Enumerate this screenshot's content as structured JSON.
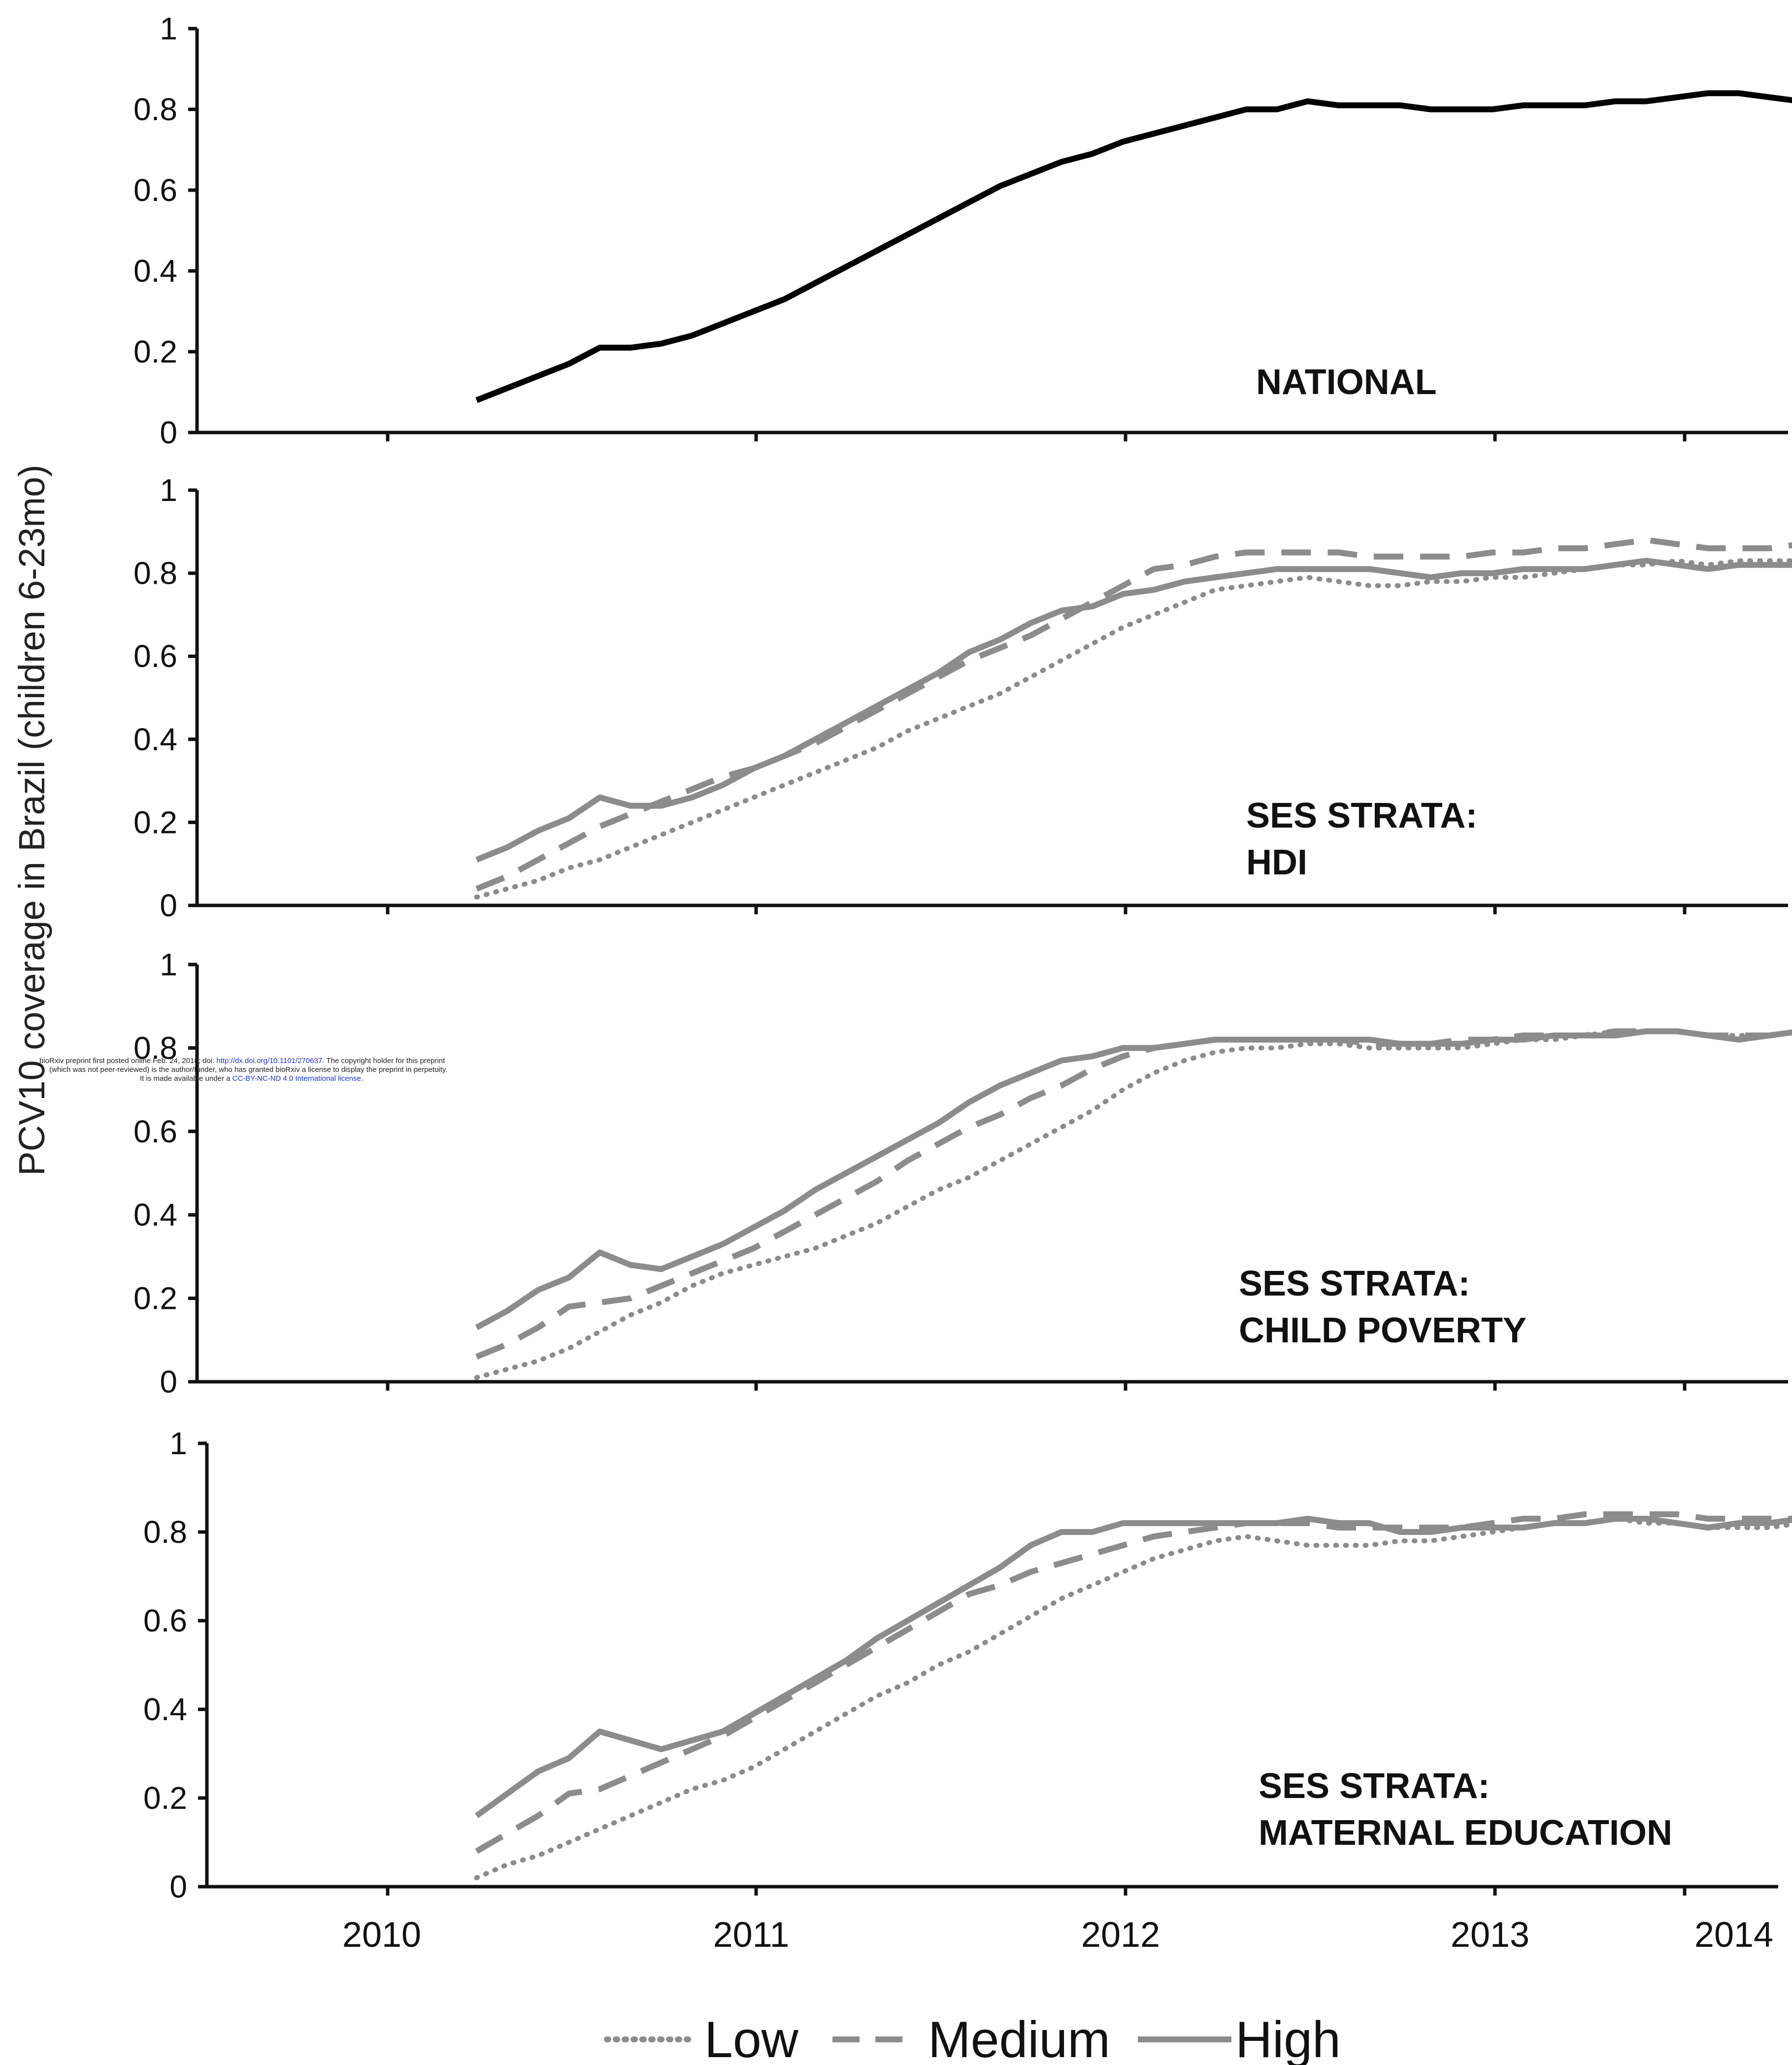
{
  "figure": {
    "y_axis_label": "PCV10 coverage  in Brazil  (children  6-23mo)",
    "x_tick_labels": [
      "2010",
      "2011",
      "2012",
      "2013",
      "2014"
    ],
    "watermark": {
      "line1_pre": "bioRxiv preprint first posted online Feb. 24, 2018; doi: ",
      "line1_link": "http://dx.doi.org/10.1101/270637",
      "line1_post": ". The copyright holder for this preprint",
      "line2": "(which was not peer-reviewed) is the author/funder, who has granted bioRxiv a license to display the preprint in perpetuity.",
      "line3_pre": "It is made available under a ",
      "line3_link": "CC-BY-NC-ND 4.0 International license",
      "line3_post": "."
    },
    "legend": [
      {
        "label": "Low",
        "style": "dotted",
        "color": "#8c8c8c"
      },
      {
        "label": "Medium",
        "style": "dashed",
        "color": "#8c8c8c"
      },
      {
        "label": "High",
        "style": "solid",
        "color": "#8c8c8c"
      }
    ],
    "colors": {
      "national": "#000000",
      "strata": "#8c8c8c",
      "axis": "#111111"
    }
  },
  "chart_data": [
    {
      "type": "line",
      "title_lines": [
        "NATIONAL"
      ],
      "ylim": [
        0,
        1
      ],
      "yticks": [
        "0",
        "0.2",
        "0.4",
        "0.6",
        "0.8",
        "1"
      ],
      "x_start": 2009.75,
      "x_step": 0.08333,
      "series": [
        {
          "style": "solid",
          "color": "#000000",
          "values": [
            0.08,
            0.11,
            0.14,
            0.17,
            0.21,
            0.21,
            0.22,
            0.24,
            0.27,
            0.3,
            0.33,
            0.37,
            0.41,
            0.45,
            0.49,
            0.53,
            0.57,
            0.61,
            0.64,
            0.67,
            0.69,
            0.72,
            0.74,
            0.76,
            0.78,
            0.8,
            0.8,
            0.82,
            0.81,
            0.81,
            0.81,
            0.8,
            0.8,
            0.8,
            0.81,
            0.81,
            0.81,
            0.82,
            0.82,
            0.83,
            0.84,
            0.84,
            0.83,
            0.82,
            0.83,
            0.83,
            0.84
          ]
        }
      ]
    },
    {
      "type": "line",
      "title_lines": [
        "SES STRATA:",
        "HDI"
      ],
      "ylim": [
        0,
        1
      ],
      "yticks": [
        "0",
        "0.2",
        "0.4",
        "0.6",
        "0.8",
        "1"
      ],
      "x_start": 2009.75,
      "x_step": 0.08333,
      "series": [
        {
          "name": "Low",
          "style": "dotted",
          "color": "#8c8c8c",
          "values": [
            0.02,
            0.04,
            0.06,
            0.09,
            0.11,
            0.14,
            0.17,
            0.2,
            0.23,
            0.26,
            0.29,
            0.32,
            0.35,
            0.38,
            0.42,
            0.45,
            0.48,
            0.51,
            0.55,
            0.59,
            0.63,
            0.67,
            0.7,
            0.73,
            0.76,
            0.77,
            0.78,
            0.79,
            0.78,
            0.77,
            0.77,
            0.78,
            0.78,
            0.79,
            0.79,
            0.8,
            0.81,
            0.82,
            0.82,
            0.83,
            0.82,
            0.83,
            0.83,
            0.83,
            0.83,
            0.84,
            0.84
          ]
        },
        {
          "name": "Medium",
          "style": "dashed",
          "color": "#8c8c8c",
          "values": [
            0.04,
            0.07,
            0.11,
            0.15,
            0.19,
            0.22,
            0.25,
            0.28,
            0.31,
            0.33,
            0.36,
            0.39,
            0.43,
            0.47,
            0.51,
            0.55,
            0.59,
            0.62,
            0.65,
            0.69,
            0.73,
            0.77,
            0.81,
            0.82,
            0.84,
            0.85,
            0.85,
            0.85,
            0.85,
            0.84,
            0.84,
            0.84,
            0.84,
            0.85,
            0.85,
            0.86,
            0.86,
            0.87,
            0.88,
            0.87,
            0.86,
            0.86,
            0.86,
            0.87,
            0.87,
            0.87,
            0.87
          ]
        },
        {
          "name": "High",
          "style": "solid",
          "color": "#8c8c8c",
          "values": [
            0.11,
            0.14,
            0.18,
            0.21,
            0.26,
            0.24,
            0.24,
            0.26,
            0.29,
            0.33,
            0.36,
            0.4,
            0.44,
            0.48,
            0.52,
            0.56,
            0.61,
            0.64,
            0.68,
            0.71,
            0.72,
            0.75,
            0.76,
            0.78,
            0.79,
            0.8,
            0.81,
            0.81,
            0.81,
            0.81,
            0.8,
            0.79,
            0.8,
            0.8,
            0.81,
            0.81,
            0.81,
            0.82,
            0.83,
            0.82,
            0.81,
            0.82,
            0.82,
            0.82,
            0.82,
            0.82,
            0.82
          ]
        }
      ]
    },
    {
      "type": "line",
      "title_lines": [
        "SES STRATA:",
        "CHILD POVERTY"
      ],
      "ylim": [
        0,
        1
      ],
      "yticks": [
        "0",
        "0.2",
        "0.4",
        "0.6",
        "0.8",
        "1"
      ],
      "x_start": 2009.75,
      "x_step": 0.08333,
      "series": [
        {
          "name": "Low",
          "style": "dotted",
          "color": "#8c8c8c",
          "values": [
            0.01,
            0.03,
            0.05,
            0.08,
            0.12,
            0.16,
            0.19,
            0.23,
            0.26,
            0.28,
            0.3,
            0.32,
            0.35,
            0.38,
            0.42,
            0.46,
            0.49,
            0.53,
            0.57,
            0.61,
            0.65,
            0.7,
            0.74,
            0.77,
            0.79,
            0.8,
            0.8,
            0.81,
            0.81,
            0.8,
            0.8,
            0.8,
            0.8,
            0.81,
            0.82,
            0.82,
            0.83,
            0.84,
            0.84,
            0.84,
            0.83,
            0.83,
            0.83,
            0.84,
            0.84,
            0.84,
            0.84
          ]
        },
        {
          "name": "Medium",
          "style": "dashed",
          "color": "#8c8c8c",
          "values": [
            0.06,
            0.09,
            0.13,
            0.18,
            0.19,
            0.2,
            0.23,
            0.26,
            0.29,
            0.32,
            0.36,
            0.4,
            0.44,
            0.48,
            0.53,
            0.57,
            0.61,
            0.64,
            0.68,
            0.71,
            0.75,
            0.78,
            0.8,
            0.81,
            0.82,
            0.82,
            0.82,
            0.82,
            0.82,
            0.81,
            0.81,
            0.81,
            0.82,
            0.82,
            0.83,
            0.83,
            0.83,
            0.84,
            0.84,
            0.84,
            0.83,
            0.83,
            0.83,
            0.84,
            0.84,
            0.84,
            0.84
          ]
        },
        {
          "name": "High",
          "style": "solid",
          "color": "#8c8c8c",
          "values": [
            0.13,
            0.17,
            0.22,
            0.25,
            0.31,
            0.28,
            0.27,
            0.3,
            0.33,
            0.37,
            0.41,
            0.46,
            0.5,
            0.54,
            0.58,
            0.62,
            0.67,
            0.71,
            0.74,
            0.77,
            0.78,
            0.8,
            0.8,
            0.81,
            0.82,
            0.82,
            0.82,
            0.82,
            0.82,
            0.82,
            0.81,
            0.81,
            0.81,
            0.82,
            0.82,
            0.83,
            0.83,
            0.83,
            0.84,
            0.84,
            0.83,
            0.82,
            0.83,
            0.84,
            0.84,
            0.84,
            0.84
          ]
        }
      ]
    },
    {
      "type": "line",
      "title_lines": [
        "SES STRATA:",
        "MATERNAL EDUCATION"
      ],
      "ylim": [
        0,
        1
      ],
      "yticks": [
        "0",
        "0.2",
        "0.4",
        "0.6",
        "0.8",
        "1"
      ],
      "x_start": 2009.75,
      "x_step": 0.08333,
      "series": [
        {
          "name": "Low",
          "style": "dotted",
          "color": "#8c8c8c",
          "values": [
            0.02,
            0.05,
            0.07,
            0.1,
            0.13,
            0.16,
            0.19,
            0.22,
            0.24,
            0.27,
            0.31,
            0.35,
            0.39,
            0.43,
            0.46,
            0.5,
            0.53,
            0.57,
            0.61,
            0.65,
            0.68,
            0.71,
            0.74,
            0.76,
            0.78,
            0.79,
            0.78,
            0.77,
            0.77,
            0.77,
            0.78,
            0.78,
            0.79,
            0.8,
            0.81,
            0.82,
            0.82,
            0.83,
            0.82,
            0.82,
            0.81,
            0.81,
            0.81,
            0.82,
            0.82,
            0.82,
            0.82
          ]
        },
        {
          "name": "Medium",
          "style": "dashed",
          "color": "#8c8c8c",
          "values": [
            0.08,
            0.12,
            0.16,
            0.21,
            0.22,
            0.25,
            0.28,
            0.31,
            0.34,
            0.38,
            0.42,
            0.46,
            0.5,
            0.54,
            0.58,
            0.62,
            0.66,
            0.68,
            0.71,
            0.73,
            0.75,
            0.77,
            0.79,
            0.8,
            0.81,
            0.82,
            0.82,
            0.82,
            0.81,
            0.81,
            0.81,
            0.81,
            0.81,
            0.82,
            0.83,
            0.83,
            0.84,
            0.84,
            0.84,
            0.84,
            0.83,
            0.83,
            0.83,
            0.83,
            0.84,
            0.84,
            0.84
          ]
        },
        {
          "name": "High",
          "style": "solid",
          "color": "#8c8c8c",
          "values": [
            0.16,
            0.21,
            0.26,
            0.29,
            0.35,
            0.33,
            0.31,
            0.33,
            0.35,
            0.39,
            0.43,
            0.47,
            0.51,
            0.56,
            0.6,
            0.64,
            0.68,
            0.72,
            0.77,
            0.8,
            0.8,
            0.82,
            0.82,
            0.82,
            0.82,
            0.82,
            0.82,
            0.83,
            0.82,
            0.82,
            0.8,
            0.8,
            0.81,
            0.81,
            0.81,
            0.82,
            0.82,
            0.83,
            0.83,
            0.82,
            0.81,
            0.82,
            0.82,
            0.83,
            0.83,
            0.83,
            0.83
          ]
        }
      ]
    }
  ]
}
